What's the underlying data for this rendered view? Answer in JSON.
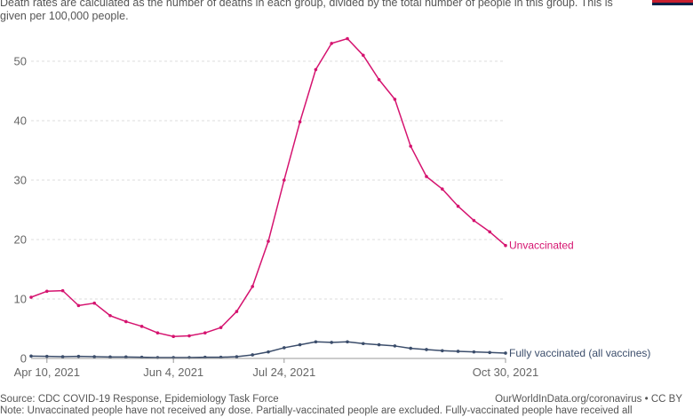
{
  "header": {
    "subtitle": "Death rates are calculated as the number of deaths in each group, divided by the total number of people in this group. This is given per 100,000 people."
  },
  "footer": {
    "source": "Source: CDC COVID-19 Response, Epidemiology Task Force",
    "link": "OurWorldInData.org/coronavirus • CC BY",
    "note": "Note: Unvaccinated people have not received any dose. Partially-vaccinated people are excluded. Fully-vaccinated people have received all"
  },
  "colors": {
    "unvaccinated": "#d5136f",
    "vaccinated": "#3b4d6b",
    "grid": "#dddddd",
    "axis_text": "#666666",
    "logo_red": "#c8202f",
    "logo_navy": "#002147"
  },
  "chart_data": {
    "type": "line",
    "title": "",
    "xlabel": "",
    "ylabel": "",
    "x_tick_labels": [
      "Apr 10, 2021",
      "Jun 4, 2021",
      "Jul 24, 2021",
      "Oct 30, 2021"
    ],
    "ylim": [
      0,
      55
    ],
    "y_ticks": [
      0,
      10,
      20,
      30,
      40,
      50
    ],
    "grid": true,
    "x": [
      "2021-04-03",
      "2021-04-10",
      "2021-04-17",
      "2021-04-24",
      "2021-05-01",
      "2021-05-08",
      "2021-05-15",
      "2021-05-22",
      "2021-05-29",
      "2021-06-05",
      "2021-06-12",
      "2021-06-19",
      "2021-06-26",
      "2021-07-03",
      "2021-07-10",
      "2021-07-17",
      "2021-07-24",
      "2021-07-31",
      "2021-08-07",
      "2021-08-14",
      "2021-08-21",
      "2021-08-28",
      "2021-09-04",
      "2021-09-11",
      "2021-09-18",
      "2021-09-25",
      "2021-10-02",
      "2021-10-09",
      "2021-10-16",
      "2021-10-23",
      "2021-10-30"
    ],
    "series": [
      {
        "name": "Unvaccinated",
        "values": [
          10.3,
          11.3,
          11.4,
          8.9,
          9.3,
          7.2,
          6.2,
          5.4,
          4.3,
          3.7,
          3.8,
          4.3,
          5.2,
          7.9,
          12.1,
          19.7,
          30.0,
          39.8,
          48.6,
          53.0,
          53.8,
          51.0,
          46.9,
          43.6,
          35.7,
          30.6,
          28.5,
          25.6,
          23.2,
          21.3,
          19.0
        ],
        "label": "Unvaccinated"
      },
      {
        "name": "Fully vaccinated (all vaccines)",
        "values": [
          0.4,
          0.35,
          0.3,
          0.35,
          0.3,
          0.25,
          0.25,
          0.2,
          0.15,
          0.15,
          0.15,
          0.2,
          0.2,
          0.3,
          0.6,
          1.1,
          1.8,
          2.3,
          2.8,
          2.7,
          2.8,
          2.5,
          2.3,
          2.1,
          1.7,
          1.5,
          1.3,
          1.2,
          1.1,
          1.0,
          0.9
        ],
        "label": "Fully vaccinated (all vaccines)"
      }
    ]
  }
}
